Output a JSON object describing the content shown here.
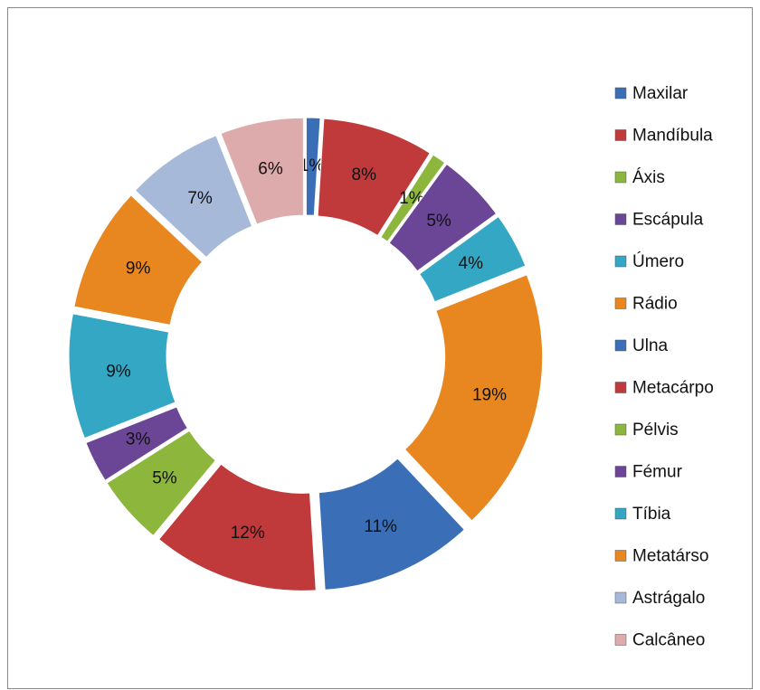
{
  "chart_data": {
    "type": "donut",
    "categories": [
      "Maxilar",
      "Mandíbula",
      "Áxis",
      "Escápula",
      "Úmero",
      "Rádio",
      "Ulna",
      "Metacárpo",
      "Pélvis",
      "Fémur",
      "Tíbia",
      "Metatárso",
      "Astrágalo",
      "Calcâneo"
    ],
    "values": [
      1,
      8,
      1,
      5,
      4,
      19,
      11,
      12,
      5,
      3,
      9,
      9,
      7,
      6
    ],
    "value_labels": [
      "1%",
      "8%",
      "1%",
      "5%",
      "4%",
      "19%",
      "11%",
      "12%",
      "5%",
      "3%",
      "9%",
      "9%",
      "7%",
      "6%"
    ],
    "colors": [
      "#3a6fb8",
      "#c0393b",
      "#8db63c",
      "#6b4596",
      "#33a7c3",
      "#e8861f",
      "#3a6fb8",
      "#c0393b",
      "#8db63c",
      "#6b4596",
      "#33a7c3",
      "#e8861f",
      "#a7b9d9",
      "#ddabab"
    ],
    "legend": "right"
  }
}
